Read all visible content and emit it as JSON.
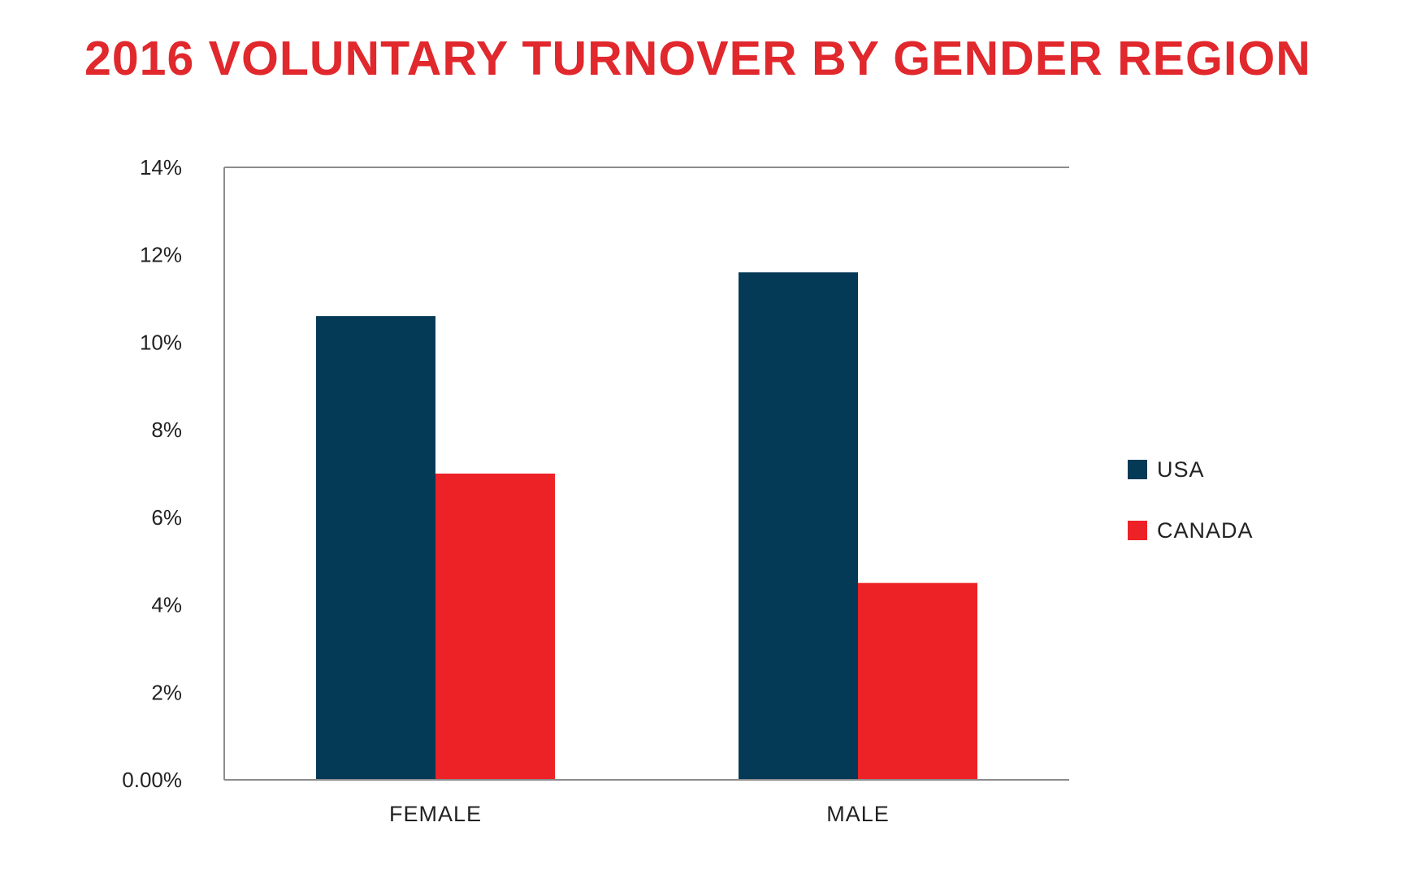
{
  "chart_data": {
    "type": "bar",
    "title": "2016 VOLUNTARY TURNOVER BY GENDER REGION",
    "xlabel": "",
    "ylabel": "",
    "categories": [
      "FEMALE",
      "MALE"
    ],
    "series": [
      {
        "name": "USA",
        "values": [
          10.6,
          11.6
        ],
        "color": "#053a57"
      },
      {
        "name": "CANADA",
        "values": [
          7.0,
          4.5
        ],
        "color": "#ed2227"
      }
    ],
    "ylim": [
      0,
      14
    ],
    "yticks": [
      0,
      2,
      4,
      6,
      8,
      10,
      12,
      14
    ],
    "ytick_labels": [
      "0.00%",
      "2%",
      "4%",
      "6%",
      "8%",
      "10%",
      "12%",
      "14%"
    ],
    "grid": false,
    "legend_position": "right",
    "colors": {
      "title": "#e0282d",
      "axis": "#8c8c8c"
    }
  }
}
